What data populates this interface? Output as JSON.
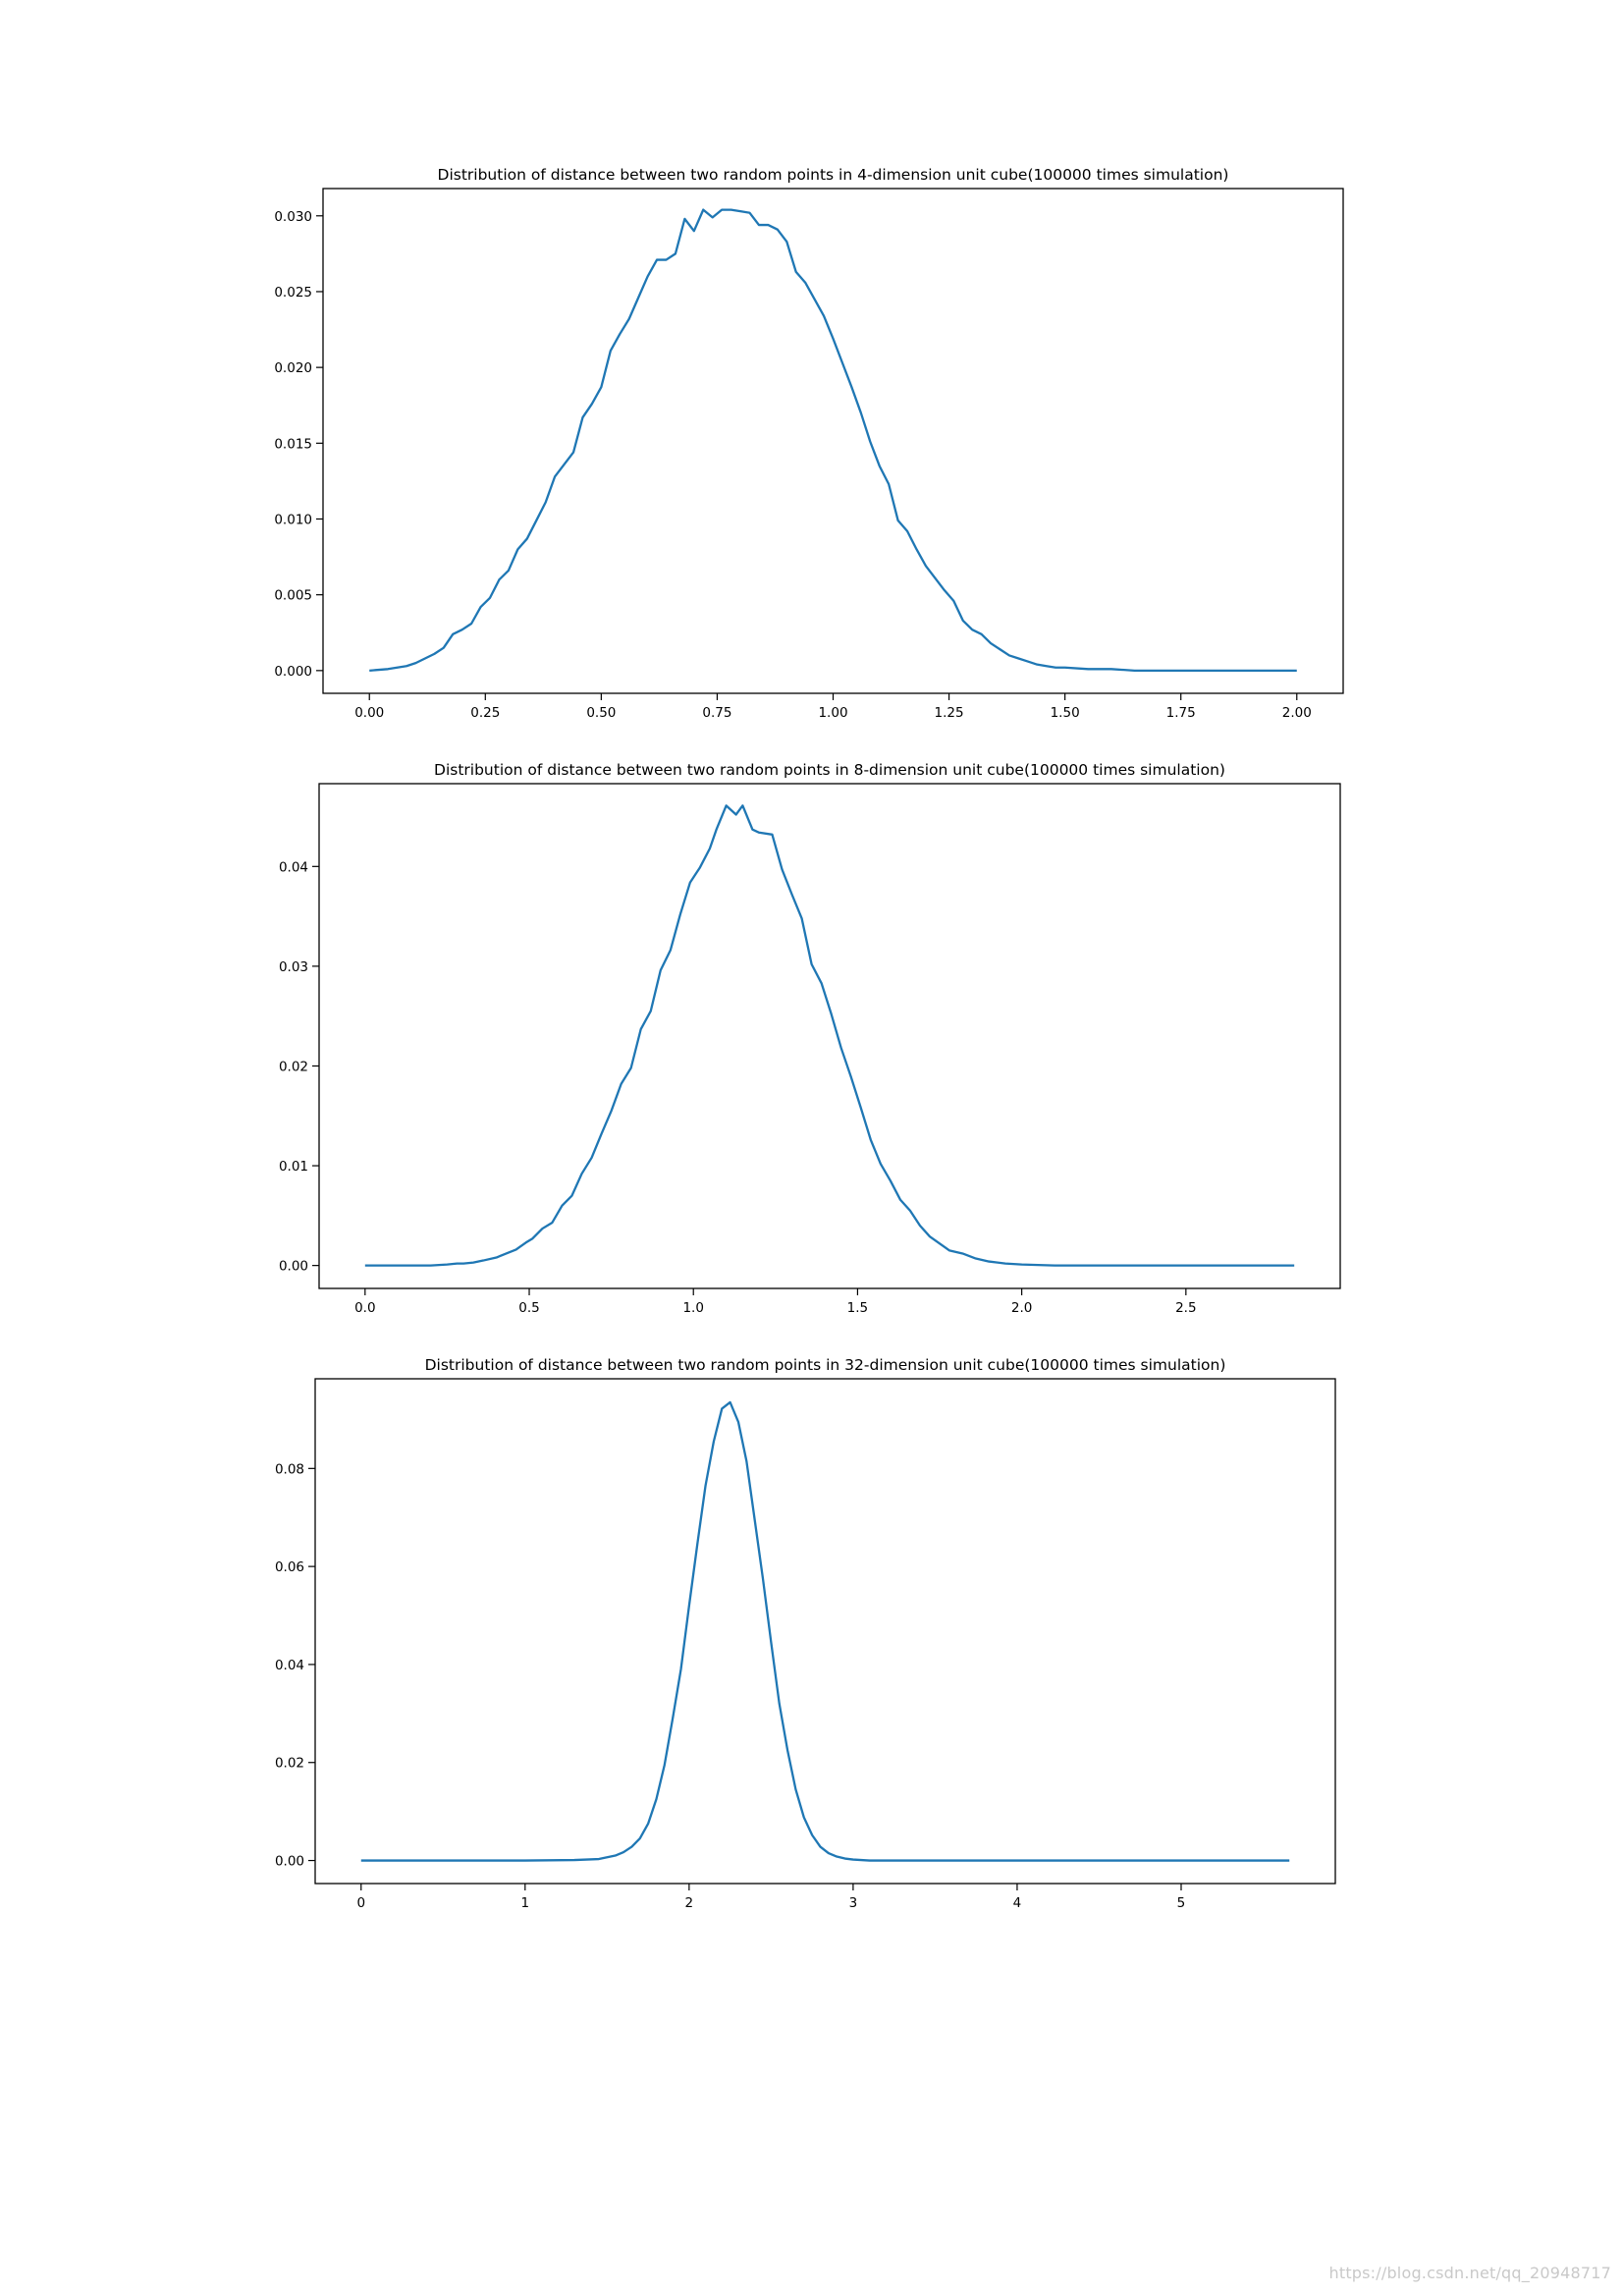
{
  "watermark": "https://blog.csdn.net/qq_20948717",
  "colors": {
    "line": "#1f77b4",
    "axes": "#000000",
    "background": "#ffffff"
  },
  "chart_data": [
    {
      "type": "line",
      "title": "Distribution of distance between two random points in 4-dimension unit cube(100000 times simulation)",
      "xlabel": "",
      "ylabel": "",
      "xlim": [
        -0.1,
        2.1
      ],
      "ylim": [
        -0.0015,
        0.0318
      ],
      "xticks": [
        0.0,
        0.25,
        0.5,
        0.75,
        1.0,
        1.25,
        1.5,
        1.75,
        2.0
      ],
      "xtick_labels": [
        "0.00",
        "0.25",
        "0.50",
        "0.75",
        "1.00",
        "1.25",
        "1.50",
        "1.75",
        "2.00"
      ],
      "yticks": [
        0.0,
        0.005,
        0.01,
        0.015,
        0.02,
        0.025,
        0.03
      ],
      "ytick_labels": [
        "0.000",
        "0.005",
        "0.010",
        "0.015",
        "0.020",
        "0.025",
        "0.030"
      ],
      "grid": false,
      "series": [
        {
          "x": [
            0.0,
            0.04,
            0.06,
            0.08,
            0.1,
            0.12,
            0.14,
            0.16,
            0.18,
            0.2,
            0.22,
            0.24,
            0.26,
            0.28,
            0.3,
            0.32,
            0.34,
            0.36,
            0.38,
            0.4,
            0.42,
            0.44,
            0.46,
            0.48,
            0.5,
            0.52,
            0.54,
            0.56,
            0.58,
            0.6,
            0.62,
            0.64,
            0.66,
            0.68,
            0.7,
            0.72,
            0.74,
            0.76,
            0.78,
            0.8,
            0.82,
            0.84,
            0.86,
            0.88,
            0.9,
            0.92,
            0.94,
            0.96,
            0.98,
            1.0,
            1.02,
            1.04,
            1.06,
            1.08,
            1.1,
            1.12,
            1.14,
            1.16,
            1.18,
            1.2,
            1.22,
            1.24,
            1.26,
            1.28,
            1.3,
            1.32,
            1.34,
            1.36,
            1.38,
            1.4,
            1.42,
            1.44,
            1.46,
            1.48,
            1.5,
            1.55,
            1.6,
            1.65,
            1.7,
            1.75,
            1.8,
            1.9,
            2.0
          ],
          "y": [
            0.0,
            0.0001,
            0.0002,
            0.0003,
            0.0005,
            0.0008,
            0.0011,
            0.0015,
            0.0024,
            0.0027,
            0.0031,
            0.0042,
            0.0048,
            0.006,
            0.0066,
            0.008,
            0.0087,
            0.0099,
            0.0111,
            0.0128,
            0.0136,
            0.0144,
            0.0167,
            0.0176,
            0.0187,
            0.0211,
            0.0222,
            0.0232,
            0.0246,
            0.026,
            0.0271,
            0.0271,
            0.0275,
            0.0298,
            0.029,
            0.0304,
            0.0299,
            0.0304,
            0.0304,
            0.0303,
            0.0302,
            0.0294,
            0.0294,
            0.0291,
            0.0283,
            0.0263,
            0.0256,
            0.0245,
            0.0234,
            0.0219,
            0.0203,
            0.0187,
            0.017,
            0.0151,
            0.0135,
            0.0123,
            0.0099,
            0.0092,
            0.008,
            0.0069,
            0.0061,
            0.0053,
            0.0046,
            0.0033,
            0.0027,
            0.0024,
            0.0018,
            0.0014,
            0.001,
            0.0008,
            0.0006,
            0.0004,
            0.0003,
            0.0002,
            0.0002,
            0.0001,
            0.0001,
            0.0,
            0.0,
            0.0,
            0.0,
            0.0,
            0.0
          ]
        }
      ]
    },
    {
      "type": "line",
      "title": "Distribution of distance between two random points in 8-dimension unit cube(100000 times simulation)",
      "xlabel": "",
      "ylabel": "",
      "xlim": [
        -0.14,
        2.97
      ],
      "ylim": [
        -0.0023,
        0.0483
      ],
      "xticks": [
        0.0,
        0.5,
        1.0,
        1.5,
        2.0,
        2.5
      ],
      "xtick_labels": [
        "0.0",
        "0.5",
        "1.0",
        "1.5",
        "2.0",
        "2.5"
      ],
      "yticks": [
        0.0,
        0.01,
        0.02,
        0.03,
        0.04
      ],
      "ytick_labels": [
        "0.00",
        "0.01",
        "0.02",
        "0.03",
        "0.04"
      ],
      "grid": false,
      "series": [
        {
          "x": [
            0.0,
            0.1,
            0.2,
            0.25,
            0.28,
            0.3,
            0.33,
            0.36,
            0.4,
            0.43,
            0.46,
            0.49,
            0.51,
            0.54,
            0.57,
            0.6,
            0.63,
            0.66,
            0.69,
            0.72,
            0.75,
            0.78,
            0.81,
            0.84,
            0.87,
            0.9,
            0.93,
            0.96,
            0.99,
            1.02,
            1.05,
            1.07,
            1.1,
            1.13,
            1.15,
            1.18,
            1.2,
            1.24,
            1.27,
            1.3,
            1.33,
            1.36,
            1.39,
            1.42,
            1.45,
            1.48,
            1.51,
            1.54,
            1.57,
            1.6,
            1.63,
            1.66,
            1.69,
            1.72,
            1.75,
            1.78,
            1.82,
            1.86,
            1.9,
            1.95,
            2.0,
            2.1,
            2.2,
            2.4,
            2.6,
            2.83
          ],
          "y": [
            0.0,
            0.0,
            0.0,
            0.0001,
            0.0002,
            0.0002,
            0.0003,
            0.0005,
            0.0008,
            0.0012,
            0.0016,
            0.0023,
            0.0027,
            0.0037,
            0.0043,
            0.006,
            0.007,
            0.0092,
            0.0108,
            0.0132,
            0.0155,
            0.0182,
            0.0198,
            0.0237,
            0.0255,
            0.0296,
            0.0316,
            0.0352,
            0.0384,
            0.0399,
            0.0418,
            0.0437,
            0.0461,
            0.0452,
            0.0461,
            0.0437,
            0.0434,
            0.0432,
            0.0397,
            0.0372,
            0.0348,
            0.0302,
            0.0283,
            0.0252,
            0.0218,
            0.0189,
            0.0158,
            0.0126,
            0.0102,
            0.0085,
            0.0066,
            0.0055,
            0.004,
            0.0029,
            0.0022,
            0.0015,
            0.0012,
            0.0007,
            0.0004,
            0.0002,
            0.0001,
            0.0,
            0.0,
            0.0,
            0.0,
            0.0
          ]
        }
      ]
    },
    {
      "type": "line",
      "title": "Distribution of distance between two random points in 32-dimension unit cube(100000 times simulation)",
      "xlabel": "",
      "ylabel": "",
      "xlim": [
        -0.28,
        5.94
      ],
      "ylim": [
        -0.0047,
        0.0983
      ],
      "xticks": [
        0,
        1,
        2,
        3,
        4,
        5
      ],
      "xtick_labels": [
        "0",
        "1",
        "2",
        "3",
        "4",
        "5"
      ],
      "yticks": [
        0.0,
        0.02,
        0.04,
        0.06,
        0.08
      ],
      "ytick_labels": [
        "0.00",
        "0.02",
        "0.04",
        "0.06",
        "0.08"
      ],
      "grid": false,
      "series": [
        {
          "x": [
            0.0,
            0.5,
            1.0,
            1.3,
            1.45,
            1.55,
            1.6,
            1.65,
            1.7,
            1.75,
            1.8,
            1.85,
            1.9,
            1.95,
            2.0,
            2.05,
            2.1,
            2.15,
            2.2,
            2.25,
            2.3,
            2.35,
            2.4,
            2.45,
            2.5,
            2.55,
            2.6,
            2.65,
            2.7,
            2.75,
            2.8,
            2.85,
            2.9,
            2.95,
            3.0,
            3.05,
            3.1,
            3.2,
            3.4,
            4.0,
            5.0,
            5.66
          ],
          "y": [
            0.0,
            0.0,
            0.0,
            0.0001,
            0.0003,
            0.001,
            0.0017,
            0.0028,
            0.0045,
            0.0075,
            0.0125,
            0.0195,
            0.029,
            0.039,
            0.052,
            0.0645,
            0.0765,
            0.0855,
            0.0922,
            0.0935,
            0.0895,
            0.0815,
            0.0695,
            0.0575,
            0.0445,
            0.032,
            0.0225,
            0.0145,
            0.0088,
            0.0052,
            0.0028,
            0.0015,
            0.0008,
            0.0004,
            0.0002,
            0.0001,
            0.0,
            0.0,
            0.0,
            0.0,
            0.0,
            0.0
          ]
        }
      ]
    }
  ]
}
